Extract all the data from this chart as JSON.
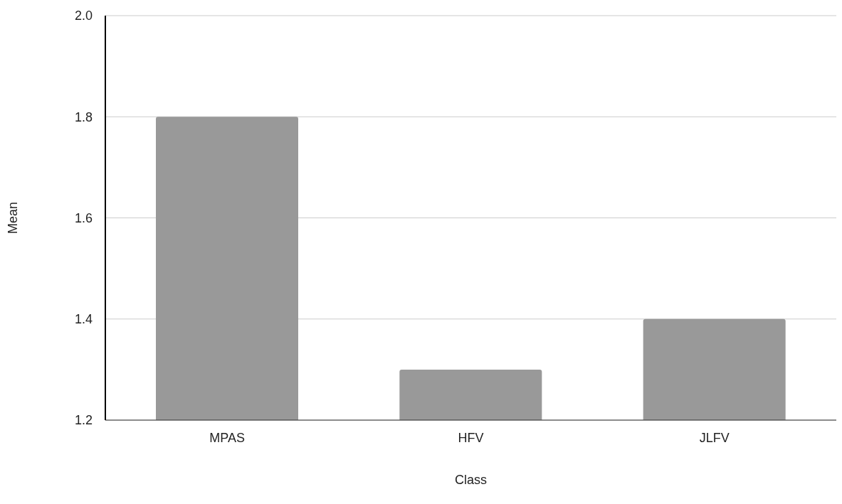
{
  "chart_data": {
    "type": "bar",
    "xlabel": "Class",
    "ylabel": "Mean",
    "categories": [
      "MPAS",
      "HFV",
      "JLFV"
    ],
    "values": [
      1.8,
      1.3,
      1.4
    ],
    "color": "#999999",
    "ylim": [
      1.2,
      2.0
    ],
    "yticks": [
      {
        "value": 1.2,
        "label": "1.2"
      },
      {
        "value": 1.4,
        "label": "1.4"
      },
      {
        "value": 1.6,
        "label": "1.6"
      },
      {
        "value": 1.8,
        "label": "1.8"
      },
      {
        "value": 2.0,
        "label": "2.0"
      }
    ],
    "grid": "y"
  }
}
